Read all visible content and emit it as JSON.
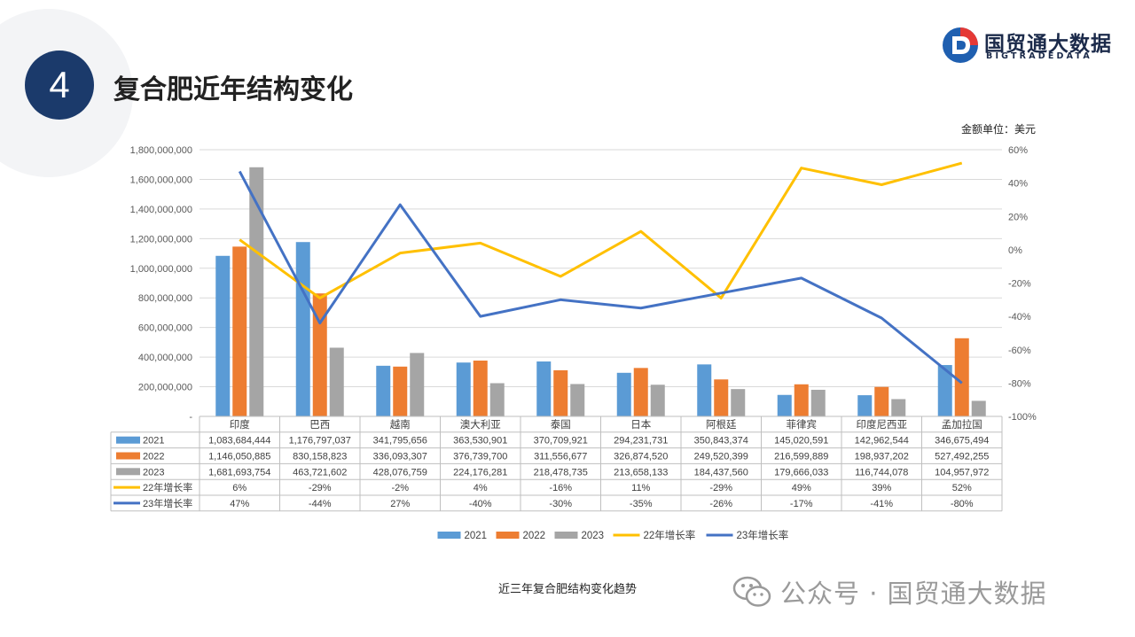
{
  "section": {
    "number": "4",
    "title": "复合肥近年结构变化"
  },
  "logo": {
    "name_cn": "国贸通大数据",
    "name_en": "BIGTRADEDATA"
  },
  "unit_note": "金额单位：美元",
  "caption": "近三年复合肥结构变化趋势",
  "watermark": {
    "text": "公众号 · 国贸通大数据"
  },
  "chart_data": {
    "type": "bar",
    "combo": "bar+line",
    "categories": [
      "印度",
      "巴西",
      "越南",
      "澳大利亚",
      "泰国",
      "日本",
      "阿根廷",
      "菲律宾",
      "印度尼西亚",
      "孟加拉国"
    ],
    "series": [
      {
        "name": "2021",
        "type": "bar",
        "axis": "left",
        "color": "#5b9bd5",
        "values": [
          1083684444,
          1176797037,
          341795656,
          363530901,
          370709921,
          294231731,
          350843374,
          145020591,
          142962544,
          346675494
        ],
        "labels": [
          "1,083,684,444",
          "1,176,797,037",
          "341,795,656",
          "363,530,901",
          "370,709,921",
          "294,231,731",
          "350,843,374",
          "145,020,591",
          "142,962,544",
          "346,675,494"
        ]
      },
      {
        "name": "2022",
        "type": "bar",
        "axis": "left",
        "color": "#ed7d31",
        "values": [
          1146050885,
          830158823,
          336093307,
          376739700,
          311556677,
          326874520,
          249520399,
          216599889,
          198937202,
          527492255
        ],
        "labels": [
          "1,146,050,885",
          "830,158,823",
          "336,093,307",
          "376,739,700",
          "311,556,677",
          "326,874,520",
          "249,520,399",
          "216,599,889",
          "198,937,202",
          "527,492,255"
        ]
      },
      {
        "name": "2023",
        "type": "bar",
        "axis": "left",
        "color": "#a5a5a5",
        "values": [
          1681693754,
          463721602,
          428076759,
          224176281,
          218478735,
          213658133,
          184437560,
          179666033,
          116744078,
          104957972
        ],
        "labels": [
          "1,681,693,754",
          "463,721,602",
          "428,076,759",
          "224,176,281",
          "218,478,735",
          "213,658,133",
          "184,437,560",
          "179,666,033",
          "116,744,078",
          "104,957,972"
        ]
      },
      {
        "name": "22年增长率",
        "type": "line",
        "axis": "right",
        "color": "#ffc000",
        "values": [
          6,
          -29,
          -2,
          4,
          -16,
          11,
          -29,
          49,
          39,
          52
        ],
        "labels": [
          "6%",
          "-29%",
          "-2%",
          "4%",
          "-16%",
          "11%",
          "-29%",
          "49%",
          "39%",
          "52%"
        ]
      },
      {
        "name": "23年增长率",
        "type": "line",
        "axis": "right",
        "color": "#4472c4",
        "values": [
          47,
          -44,
          27,
          -40,
          -30,
          -35,
          -26,
          -17,
          -41,
          -80
        ],
        "labels": [
          "47%",
          "-44%",
          "27%",
          "-40%",
          "-30%",
          "-35%",
          "-26%",
          "-17%",
          "-41%",
          "-80%"
        ]
      }
    ],
    "y_left": {
      "ylim": [
        0,
        1800000000
      ],
      "ticks": [
        "-",
        "200,000,000",
        "400,000,000",
        "600,000,000",
        "800,000,000",
        "1,000,000,000",
        "1,200,000,000",
        "1,400,000,000",
        "1,600,000,000",
        "1,800,000,000"
      ]
    },
    "y_right": {
      "ylim": [
        -100,
        60
      ],
      "ticks": [
        "-100%",
        "-80%",
        "-60%",
        "-40%",
        "-20%",
        "0%",
        "20%",
        "40%",
        "60%"
      ]
    },
    "grid": true,
    "data_table": true,
    "legend_position": "bottom"
  }
}
